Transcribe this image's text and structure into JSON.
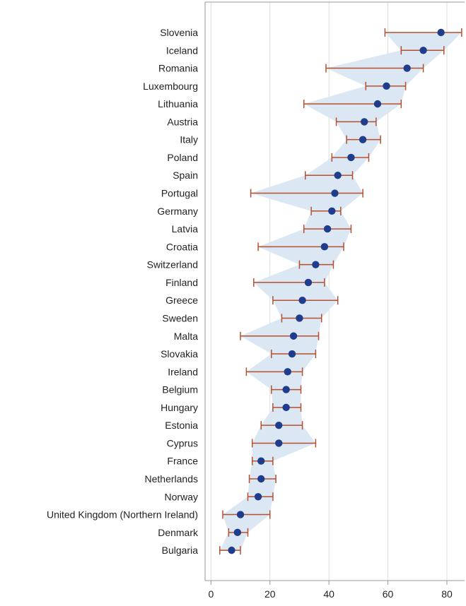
{
  "chart_data": {
    "type": "scatter",
    "xlim": [
      -2,
      86
    ],
    "x_ticks": [
      "0",
      "20",
      "40",
      "60",
      "80"
    ],
    "x_tick_values": [
      0,
      20,
      40,
      60,
      80
    ],
    "grid": "vertical",
    "colors": {
      "point": "#1f3d8c",
      "error_bar": "#b5502e",
      "band": "#dbe7f3",
      "grid": "#dddddd",
      "axis": "#999999"
    },
    "points": [
      {
        "label": "Slovenia",
        "value": 78,
        "low": 59,
        "high": 85
      },
      {
        "label": "Iceland",
        "value": 72,
        "low": 64.5,
        "high": 79
      },
      {
        "label": "Romania",
        "value": 66.5,
        "low": 39,
        "high": 72
      },
      {
        "label": "Luxembourg",
        "value": 59.5,
        "low": 52.5,
        "high": 66
      },
      {
        "label": "Lithuania",
        "value": 56.5,
        "low": 31.5,
        "high": 64.5
      },
      {
        "label": "Austria",
        "value": 52,
        "low": 42.5,
        "high": 56
      },
      {
        "label": "Italy",
        "value": 51.5,
        "low": 46,
        "high": 57.5
      },
      {
        "label": "Poland",
        "value": 47.5,
        "low": 41,
        "high": 53.5
      },
      {
        "label": "Spain",
        "value": 43,
        "low": 32,
        "high": 48
      },
      {
        "label": "Portugal",
        "value": 42,
        "low": 13.5,
        "high": 51.5
      },
      {
        "label": "Germany",
        "value": 41,
        "low": 34,
        "high": 44
      },
      {
        "label": "Latvia",
        "value": 39.5,
        "low": 31.5,
        "high": 47.5
      },
      {
        "label": "Croatia",
        "value": 38.5,
        "low": 16,
        "high": 45
      },
      {
        "label": "Switzerland",
        "value": 35.5,
        "low": 30,
        "high": 41.5
      },
      {
        "label": "Finland",
        "value": 33,
        "low": 14.5,
        "high": 38.5
      },
      {
        "label": "Greece",
        "value": 31,
        "low": 21,
        "high": 43
      },
      {
        "label": "Sweden",
        "value": 30,
        "low": 24,
        "high": 37.5
      },
      {
        "label": "Malta",
        "value": 28,
        "low": 10,
        "high": 36.5
      },
      {
        "label": "Slovakia",
        "value": 27.5,
        "low": 20.5,
        "high": 35.5
      },
      {
        "label": "Ireland",
        "value": 26,
        "low": 12,
        "high": 31
      },
      {
        "label": "Belgium",
        "value": 25.5,
        "low": 20.5,
        "high": 30.5
      },
      {
        "label": "Hungary",
        "value": 25.5,
        "low": 21,
        "high": 30.5
      },
      {
        "label": "Estonia",
        "value": 23,
        "low": 17,
        "high": 31
      },
      {
        "label": "Cyprus",
        "value": 23,
        "low": 14,
        "high": 35.5
      },
      {
        "label": "France",
        "value": 17,
        "low": 14,
        "high": 21
      },
      {
        "label": "Netherlands",
        "value": 17,
        "low": 13,
        "high": 22
      },
      {
        "label": "Norway",
        "value": 16,
        "low": 12.5,
        "high": 21
      },
      {
        "label": "United Kingdom (Northern Ireland)",
        "value": 10,
        "low": 4,
        "high": 20
      },
      {
        "label": "Denmark",
        "value": 9,
        "low": 6,
        "high": 12.5
      },
      {
        "label": "Bulgaria",
        "value": 7,
        "low": 3,
        "high": 10
      }
    ]
  }
}
